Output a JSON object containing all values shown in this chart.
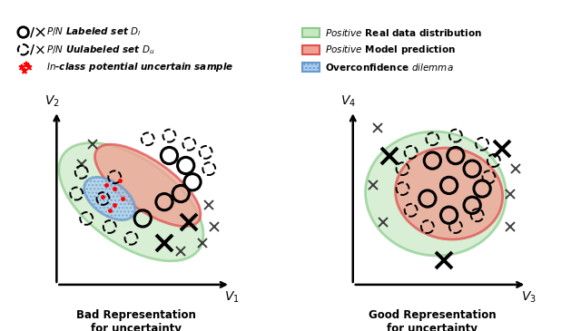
{
  "fig_width": 6.4,
  "fig_height": 3.65,
  "bg_color": "#ffffff",
  "green_fill": "#c8e8c4",
  "green_ec": "#88cc88",
  "red_fill": "#f0a090",
  "red_ec": "#e05050",
  "blue_fill": "#aaccee",
  "blue_ec": "#6699cc",
  "left_title": "Bad Representation\nfor uncertainty",
  "right_title": "Good Representation\nfor uncertainty",
  "left_xlabel": "$V_1$",
  "left_ylabel": "$V_2$",
  "right_xlabel": "$V_3$",
  "right_ylabel": "$V_4$"
}
